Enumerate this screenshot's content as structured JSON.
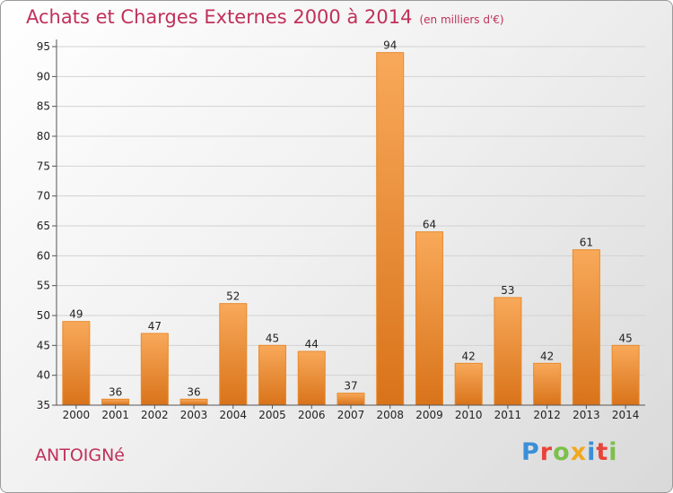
{
  "chart_data": {
    "type": "bar",
    "title": "Achats et Charges Externes 2000 à 2014",
    "unit_note": "(en milliers d'€)",
    "categories": [
      "2000",
      "2001",
      "2002",
      "2003",
      "2004",
      "2005",
      "2006",
      "2007",
      "2008",
      "2009",
      "2010",
      "2011",
      "2012",
      "2013",
      "2014"
    ],
    "values": [
      49,
      36,
      47,
      36,
      52,
      45,
      44,
      37,
      94,
      64,
      42,
      53,
      42,
      61,
      45
    ],
    "ylim": [
      35,
      95
    ],
    "yticks": [
      35,
      40,
      45,
      50,
      55,
      60,
      65,
      70,
      75,
      80,
      85,
      90,
      95
    ],
    "grid": true,
    "bar_color": "#f0922e"
  },
  "footer": {
    "town": "ANTOIGNé",
    "logo_letters": [
      {
        "ch": "P",
        "color": "#3a8fd8"
      },
      {
        "ch": "r",
        "color": "#e8443a"
      },
      {
        "ch": "o",
        "color": "#7cc04a"
      },
      {
        "ch": "x",
        "color": "#f2a81d"
      },
      {
        "ch": "i",
        "color": "#3a8fd8"
      },
      {
        "ch": "t",
        "color": "#e8443a"
      },
      {
        "ch": "i",
        "color": "#7cc04a"
      }
    ]
  }
}
